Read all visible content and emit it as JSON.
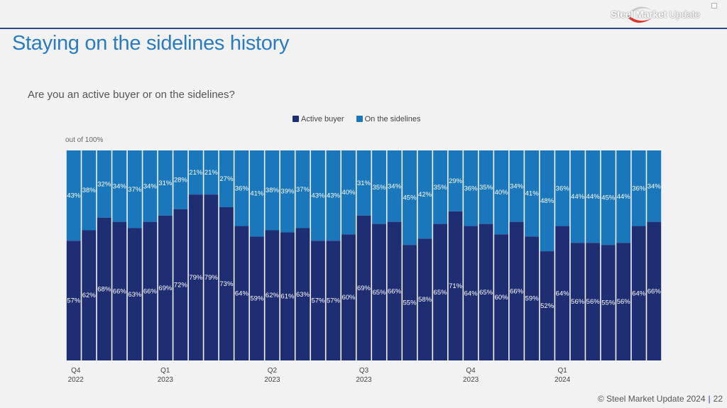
{
  "header": {
    "logo_text_bold": "Steel Market",
    "logo_text_light": "Update",
    "title": "Staying on the sidelines history"
  },
  "colors": {
    "active": "#1f2d73",
    "sidelines": "#1a77bb",
    "label": "#ffffff"
  },
  "footer": {
    "copyright": "© Steel Market Update 2024",
    "separator": "|",
    "page_number": "22"
  },
  "chart_data": {
    "type": "bar",
    "stacked": true,
    "title": "Are you an active buyer or on the sidelines?",
    "unit_note": "out of 100%",
    "legend": [
      "Active buyer",
      "On the sidelines"
    ],
    "ylim": [
      0,
      100
    ],
    "series": [
      {
        "name": "Active buyer",
        "values": [
          57,
          62,
          68,
          66,
          63,
          66,
          69,
          72,
          79,
          79,
          73,
          64,
          59,
          62,
          61,
          63,
          57,
          57,
          60,
          69,
          65,
          66,
          55,
          58,
          65,
          71,
          64,
          65,
          60,
          66,
          59,
          52,
          64,
          56,
          56,
          55,
          56,
          64,
          66
        ]
      },
      {
        "name": "On the sidelines",
        "values": [
          43,
          38,
          32,
          34,
          37,
          34,
          31,
          28,
          21,
          21,
          27,
          36,
          41,
          38,
          39,
          37,
          43,
          43,
          40,
          31,
          35,
          34,
          45,
          42,
          35,
          29,
          36,
          35,
          40,
          34,
          41,
          48,
          36,
          44,
          44,
          45,
          44,
          36,
          34
        ]
      }
    ],
    "x_ticks": [
      {
        "index": 0,
        "quarter": "Q4",
        "year": "2022"
      },
      {
        "index": 6,
        "quarter": "Q1",
        "year": "2023"
      },
      {
        "index": 13,
        "quarter": "Q2",
        "year": "2023"
      },
      {
        "index": 19,
        "quarter": "Q3",
        "year": "2023"
      },
      {
        "index": 26,
        "quarter": "Q4",
        "year": "2023"
      },
      {
        "index": 32,
        "quarter": "Q1",
        "year": "2024"
      }
    ]
  }
}
